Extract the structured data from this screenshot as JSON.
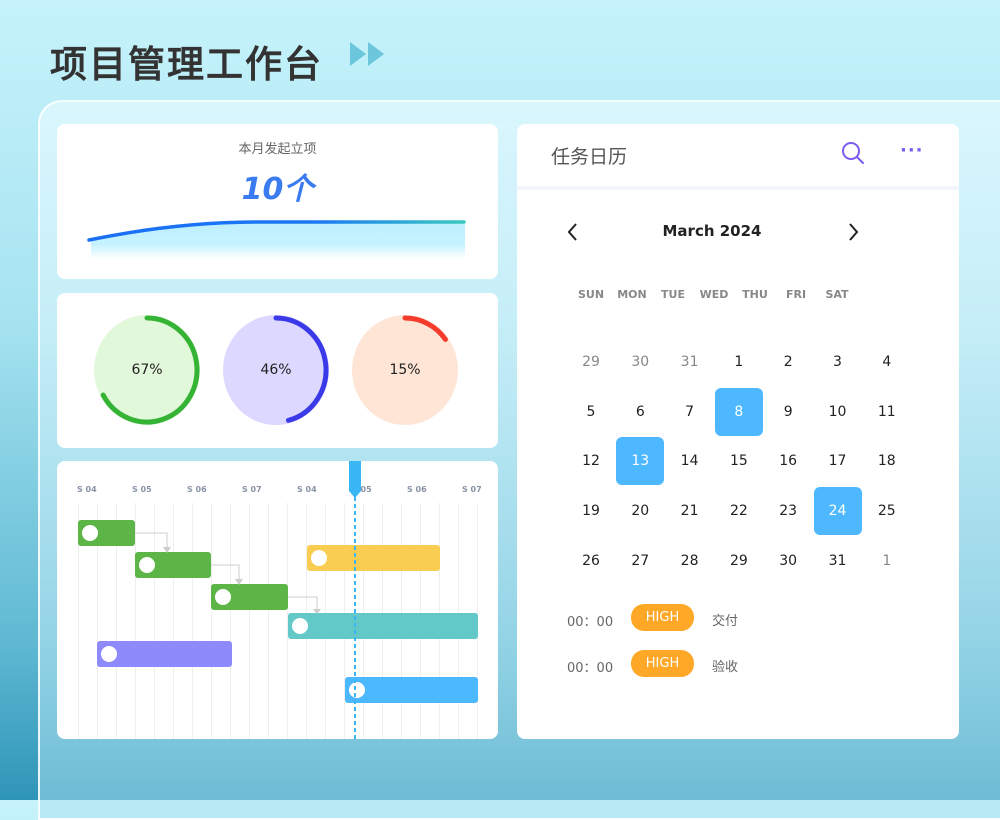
{
  "header": {
    "title": "项目管理工作台",
    "icon": "double-play-icon"
  },
  "summary": {
    "label": "本月发起立项",
    "value": "10个"
  },
  "progress": [
    {
      "value": "67%",
      "fraction": 0.67,
      "color": "#35b335",
      "bg": "#e2f8da"
    },
    {
      "value": "46%",
      "fraction": 0.46,
      "color": "#3b3ae8",
      "bg": "#dcd8ff"
    },
    {
      "value": "15%",
      "fraction": 0.15,
      "color": "#f53b2c",
      "bg": "#ffe5d6"
    }
  ],
  "gantt": {
    "ticks": [
      "S 04",
      "S 05",
      "S 06",
      "S 07",
      "S 04",
      "S 05",
      "S 06",
      "S 07"
    ],
    "bars": [
      {
        "color": "#5db548"
      },
      {
        "color": "#5db548"
      },
      {
        "color": "#5db548"
      },
      {
        "color": "#62c8c8"
      },
      {
        "color": "#8f8afc"
      },
      {
        "color": "#f8cd52"
      },
      {
        "color": "#4cb8ff"
      }
    ]
  },
  "calendar": {
    "title": "任务日历",
    "month": "March 2024",
    "weekdays": [
      "SUN",
      "MON",
      "TUE",
      "WED",
      "THU",
      "FRI",
      "SAT"
    ],
    "weeks": [
      [
        "29",
        "30",
        "31",
        "1",
        "2",
        "3",
        "4"
      ],
      [
        "5",
        "6",
        "7",
        "8",
        "9",
        "10",
        "11"
      ],
      [
        "12",
        "13",
        "14",
        "15",
        "16",
        "17",
        "18"
      ],
      [
        "19",
        "20",
        "21",
        "22",
        "23",
        "24",
        "25"
      ],
      [
        "26",
        "27",
        "28",
        "29",
        "30",
        "31",
        "1"
      ]
    ],
    "selected": [
      "8",
      "13",
      "24"
    ],
    "events": [
      {
        "time": "00：00",
        "priority": "HIGH",
        "name": "交付"
      },
      {
        "time": "00：00",
        "priority": "HIGH",
        "name": "验收"
      }
    ],
    "accent": "#7b5cf0"
  }
}
